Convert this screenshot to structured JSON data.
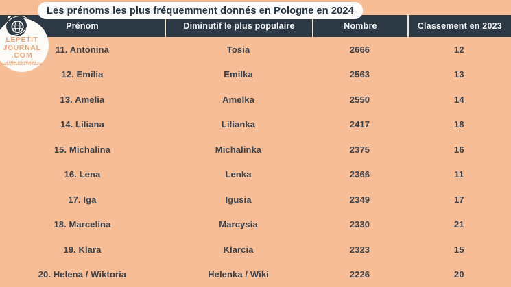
{
  "chart_data": {
    "type": "table",
    "title": "Les prénoms les plus fréquemment donnés en Pologne en 2024",
    "columns": [
      "Prénom",
      "Diminutif le plus populaire",
      "Nombre",
      "Classement en 2023"
    ],
    "rows": [
      [
        "11. Antonina",
        "Tosia",
        "2666",
        "12"
      ],
      [
        "12. Emilia",
        "Emilka",
        "2563",
        "13"
      ],
      [
        "13. Amelia",
        "Amelka",
        "2550",
        "14"
      ],
      [
        "14. Liliana",
        "Lilianka",
        "2417",
        "18"
      ],
      [
        "15. Michalina",
        "Michalinka",
        "2375",
        "16"
      ],
      [
        "16. Lena",
        "Lenka",
        "2366",
        "11"
      ],
      [
        "17. Iga",
        "Igusia",
        "2349",
        "17"
      ],
      [
        "18. Marcelina",
        "Marcysia",
        "2330",
        "21"
      ],
      [
        "19. Klara",
        "Klarcia",
        "2323",
        "15"
      ],
      [
        "20. Helena / Wiktoria",
        "Helenka / Wiki",
        "2226",
        "20"
      ]
    ],
    "legend": "none",
    "grid": "off"
  },
  "logo": {
    "line1": "LEPETIT",
    "line2": "JOURNAL",
    "line3": ".COM",
    "tagline_line1": "LE MÉDIA DES FRANÇAIS &",
    "tagline_line2": "FRANCOPHONES À L'ÉTRANGER",
    "icon": "globe-plane-icon"
  },
  "colors": {
    "background": "#f6bd97",
    "header_band": "#2d3945",
    "header_text": "#f4f6f7",
    "row_text": "#3c434c",
    "title_pill_bg": "#fdfdfd",
    "title_text": "#253442",
    "column_divider": "#f0e5d2",
    "logo_text": "#f0a77c",
    "logo_tagline": "#e08a50"
  }
}
